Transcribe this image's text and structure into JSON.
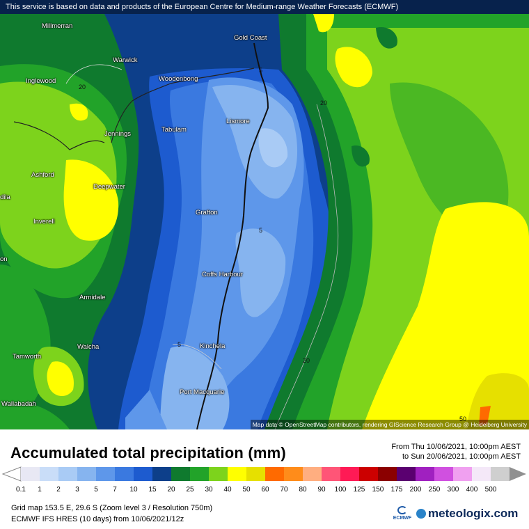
{
  "header": {
    "notice": "This service is based on data and products of the European Centre for Medium-range Weather Forecasts (ECMWF)"
  },
  "map": {
    "attribution": "Map data © OpenStreetMap contributors, rendering GIScience Research Group @ Heidelberg University",
    "places": [
      {
        "name": "Millmerran"
      },
      {
        "name": "Gold Coast"
      },
      {
        "name": "Warwick"
      },
      {
        "name": "Inglewood"
      },
      {
        "name": "Woodenbong"
      },
      {
        "name": "Lismore"
      },
      {
        "name": "Tabulam"
      },
      {
        "name": "Jennings"
      },
      {
        "name": "Ashford"
      },
      {
        "name": "Deepwater"
      },
      {
        "name": "Grafton"
      },
      {
        "name": "Inverell"
      },
      {
        "name": "Coffs Harbour"
      },
      {
        "name": "Armidale"
      },
      {
        "name": "Walcha"
      },
      {
        "name": "Kinchela"
      },
      {
        "name": "Tamworth"
      },
      {
        "name": "Port Macquarie"
      },
      {
        "name": "Wallabadah"
      },
      {
        "name": "dila"
      },
      {
        "name": "on"
      }
    ],
    "contour_labels": [
      "5",
      "20",
      "5",
      "20",
      "5",
      "20",
      "50"
    ]
  },
  "title": "Accumulated total precipitation (mm)",
  "period": {
    "from": "From Thu 10/06/2021, 10:00pm AEST",
    "to": "to Sun 20/06/2021, 10:00pm AEST"
  },
  "legend": {
    "values": [
      "0.1",
      "1",
      "2",
      "3",
      "5",
      "7",
      "10",
      "15",
      "20",
      "25",
      "30",
      "40",
      "50",
      "60",
      "70",
      "80",
      "90",
      "100",
      "125",
      "150",
      "175",
      "200",
      "250",
      "300",
      "400",
      "500"
    ],
    "colors": [
      "#e8e8f4",
      "#c9ddf8",
      "#a9cbf5",
      "#86b4ef",
      "#5e97ea",
      "#3a79e0",
      "#1d5bcf",
      "#0d3f8a",
      "#0f7a2e",
      "#22a329",
      "#7dd31c",
      "#ffff00",
      "#e6e000",
      "#ff6a00",
      "#ff8c1a",
      "#ffae80",
      "#ff5577",
      "#ff1a55",
      "#cc0000",
      "#8b0000",
      "#5a0070",
      "#a020c0",
      "#d050e0",
      "#f0a0f0",
      "#f4e8f8",
      "#cfcfcf"
    ]
  },
  "footer": {
    "line1": "Grid map 153.5 E, 29.6 S (Zoom level 3 / Resolution 750m)",
    "line2": "ECMWF IFS HRES (10 days) from 10/06/2021/12z",
    "ecmwf_logo": "ECMWF",
    "brand": "meteologix.com"
  }
}
